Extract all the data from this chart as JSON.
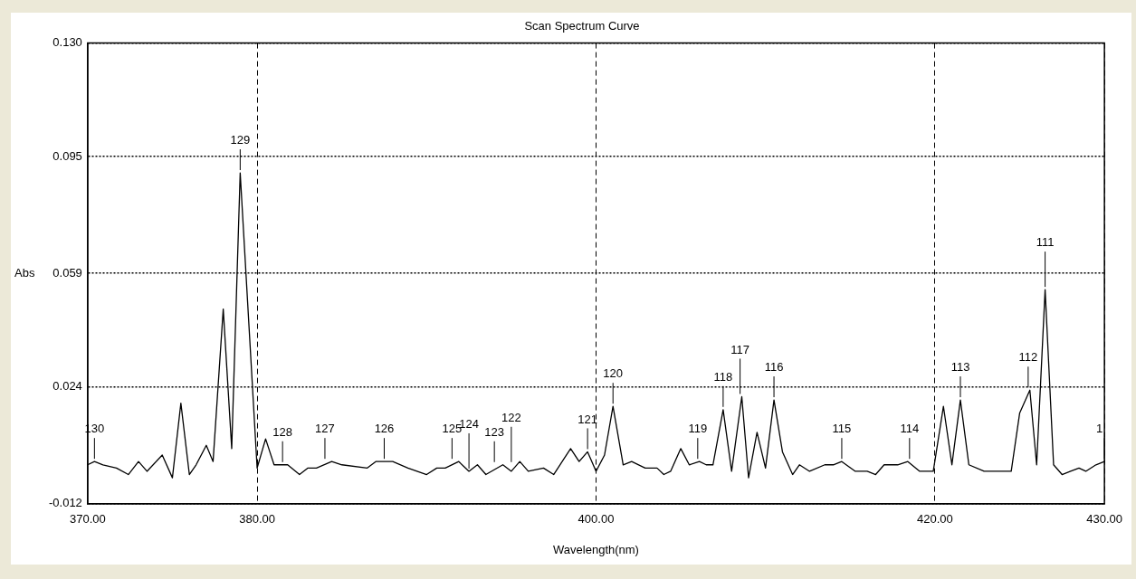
{
  "chart_data": {
    "type": "line",
    "title": "Scan Spectrum Curve",
    "xlabel": "Wavelength(nm)",
    "ylabel": "Abs",
    "xlim": [
      370,
      430
    ],
    "xticks": [
      {
        "value": 370,
        "label": "370.00"
      },
      {
        "value": 380,
        "label": "380.00"
      },
      {
        "value": 400,
        "label": "400.00"
      },
      {
        "value": 420,
        "label": "420.00"
      },
      {
        "value": 430,
        "label": "430.00"
      }
    ],
    "ylim": [
      -0.012,
      0.13
    ],
    "yticks": [
      {
        "value": -0.012,
        "label": "-0.012"
      },
      {
        "value": 0.024,
        "label": "0.024"
      },
      {
        "value": 0.059,
        "label": "0.059"
      },
      {
        "value": 0.095,
        "label": "0.095"
      },
      {
        "value": 0.13,
        "label": "0.130"
      }
    ],
    "grid": true,
    "legend": false,
    "marker": "none",
    "line_style": "solid",
    "series": [
      {
        "color": "#000000",
        "x": [
          370,
          370.4,
          370.9,
          371.7,
          372.4,
          373,
          373.5,
          374.4,
          375,
          375.5,
          376,
          376.4,
          377,
          377.4,
          378,
          378.5,
          379,
          380,
          380.5,
          381,
          381.8,
          382.5,
          383,
          383.5,
          384.4,
          385,
          386.5,
          387,
          388,
          388.9,
          390,
          390.6,
          391.1,
          391.9,
          392.5,
          393,
          393.5,
          394.5,
          395,
          395.5,
          396,
          396.9,
          397.5,
          398.5,
          399,
          399.5,
          400,
          400.5,
          401,
          401.6,
          402.1,
          402.9,
          403.6,
          404,
          404.4,
          405,
          405.5,
          406.1,
          406.5,
          406.9,
          407.5,
          408,
          408.6,
          409,
          409.5,
          410,
          410.5,
          411,
          411.6,
          412,
          412.6,
          413.5,
          414,
          414.5,
          415.3,
          416,
          416.5,
          417,
          417.8,
          418.4,
          419.1,
          419.9,
          420.5,
          421,
          421.5,
          422,
          422.9,
          423.8,
          424.5,
          425,
          425.6,
          426,
          426.5,
          427,
          427.5,
          428,
          428.5,
          428.9,
          429.5,
          430
        ],
        "values": [
          0,
          0.001,
          0,
          -0.001,
          -0.003,
          0.001,
          -0.002,
          0.003,
          -0.004,
          0.019,
          -0.003,
          0,
          0.006,
          0.001,
          0.048,
          0.005,
          0.09,
          -0.001,
          0.008,
          0,
          0,
          -0.003,
          -0.001,
          -0.001,
          0.001,
          0,
          -0.001,
          0.001,
          0.001,
          -0.001,
          -0.003,
          -0.001,
          -0.001,
          0.001,
          -0.002,
          0,
          -0.003,
          0,
          -0.002,
          0.001,
          -0.002,
          -0.001,
          -0.003,
          0.005,
          0.001,
          0.004,
          -0.002,
          0.003,
          0.018,
          0,
          0.001,
          -0.001,
          -0.001,
          -0.003,
          -0.002,
          0.005,
          0,
          0.001,
          0,
          0,
          0.017,
          -0.002,
          0.021,
          -0.004,
          0.01,
          -0.001,
          0.02,
          0.004,
          -0.003,
          0,
          -0.002,
          0,
          0,
          0.001,
          -0.002,
          -0.002,
          -0.003,
          0,
          0,
          0.001,
          -0.002,
          -0.002,
          0.018,
          0,
          0.02,
          0,
          -0.002,
          -0.002,
          -0.002,
          0.016,
          0.023,
          0,
          0.054,
          0,
          -0.003,
          -0.002,
          -0.001,
          -0.002,
          0,
          0.001
        ]
      }
    ],
    "annotations": [
      {
        "text": "130",
        "x": 370.4,
        "y": 0.001
      },
      {
        "text": "129",
        "x": 379,
        "y": 0.09
      },
      {
        "text": "128",
        "x": 381.5,
        "y": 0
      },
      {
        "text": "127",
        "x": 384,
        "y": 0.001
      },
      {
        "text": "126",
        "x": 387.5,
        "y": 0.001
      },
      {
        "text": "125",
        "x": 391.5,
        "y": 0.001
      },
      {
        "text": "124",
        "x": 392.5,
        "y": -0.002
      },
      {
        "text": "123",
        "x": 394,
        "y": 0
      },
      {
        "text": "122",
        "x": 395,
        "y": 0
      },
      {
        "text": "121",
        "x": 399.5,
        "y": 0.004
      },
      {
        "text": "120",
        "x": 401,
        "y": 0.018
      },
      {
        "text": "119",
        "x": 406,
        "y": 0.001
      },
      {
        "text": "118",
        "x": 407.5,
        "y": 0.017
      },
      {
        "text": "117",
        "x": 408.5,
        "y": 0.021
      },
      {
        "text": "116",
        "x": 410.5,
        "y": 0.02
      },
      {
        "text": "115",
        "x": 414.5,
        "y": 0.001
      },
      {
        "text": "114",
        "x": 418.5,
        "y": 0.001
      },
      {
        "text": "113",
        "x": 421.5,
        "y": 0.02
      },
      {
        "text": "112",
        "x": 425.5,
        "y": 0.023
      },
      {
        "text": "111",
        "x": 426.5,
        "y": 0.054
      },
      {
        "text": "1",
        "x": 430,
        "y": 0.001
      }
    ]
  }
}
